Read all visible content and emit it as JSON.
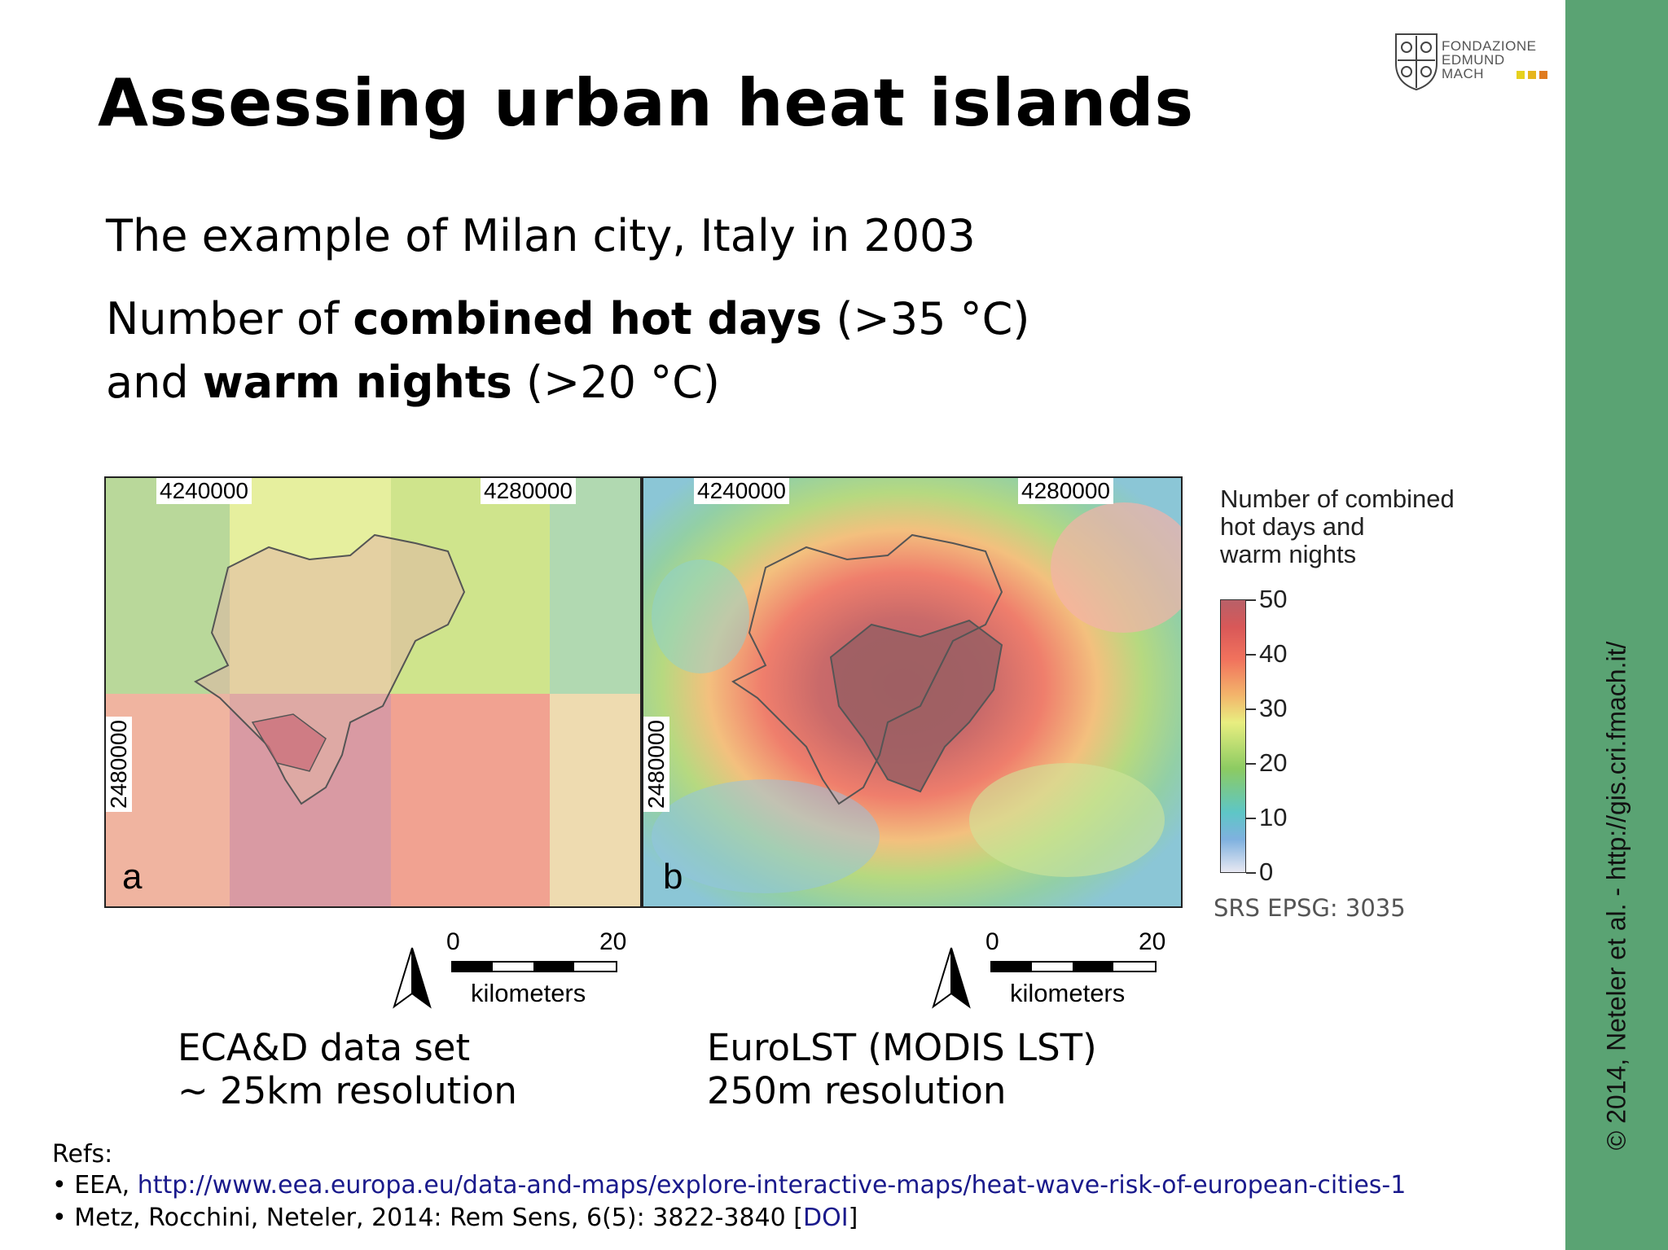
{
  "title": "Assessing urban heat islands",
  "logo": {
    "line1": "FONDAZIONE",
    "line2": "EDMUND",
    "line3": "MACH",
    "colors": [
      "#e6d11e",
      "#e6b51e",
      "#e07b1e"
    ]
  },
  "body": {
    "line1": "The example of Milan city, Italy in 2003",
    "line2_prefix": "Number of ",
    "line2_bold": "combined hot days",
    "line2_suffix": " (>35 °C)",
    "line3_prefix": "and ",
    "line3_bold": "warm nights",
    "line3_suffix": " (>20 °C)"
  },
  "maps": {
    "a": {
      "letter": "a",
      "x1": "4240000",
      "x2": "4280000",
      "y": "2480000",
      "caption1": "ECA&D data set",
      "caption2": "~ 25km resolution"
    },
    "b": {
      "letter": "b",
      "x1": "4240000",
      "x2": "4280000",
      "y": "2480000",
      "caption1": "EuroLST (MODIS LST)",
      "caption2": "250m resolution"
    },
    "scalebar": {
      "start": "0",
      "end": "20",
      "unit": "kilometers"
    }
  },
  "legend": {
    "title1": "Number of combined",
    "title2": "hot days and",
    "title3": "warm nights",
    "ticks": [
      "50",
      "40",
      "30",
      "20",
      "10",
      "0"
    ],
    "srs": "SRS EPSG: 3035"
  },
  "refs": {
    "heading": "Refs:",
    "item1_prefix": "• EEA, ",
    "item1_link": "http://www.eea.europa.eu/data-and-maps/explore-interactive-maps/heat-wave-risk-of-european-cities-1",
    "item2_text": "• Metz, Rocchini, Neteler, 2014: Rem Sens, 6(5): 3822-3840 [",
    "item2_link": "DOI",
    "item2_end": "]"
  },
  "sidebar": {
    "copyright": "© 2014, Neteler et al. - http://gis.cri.fmach.it/"
  },
  "colors": {
    "sidebar": "#5aa373",
    "link": "#1a1a8c"
  }
}
